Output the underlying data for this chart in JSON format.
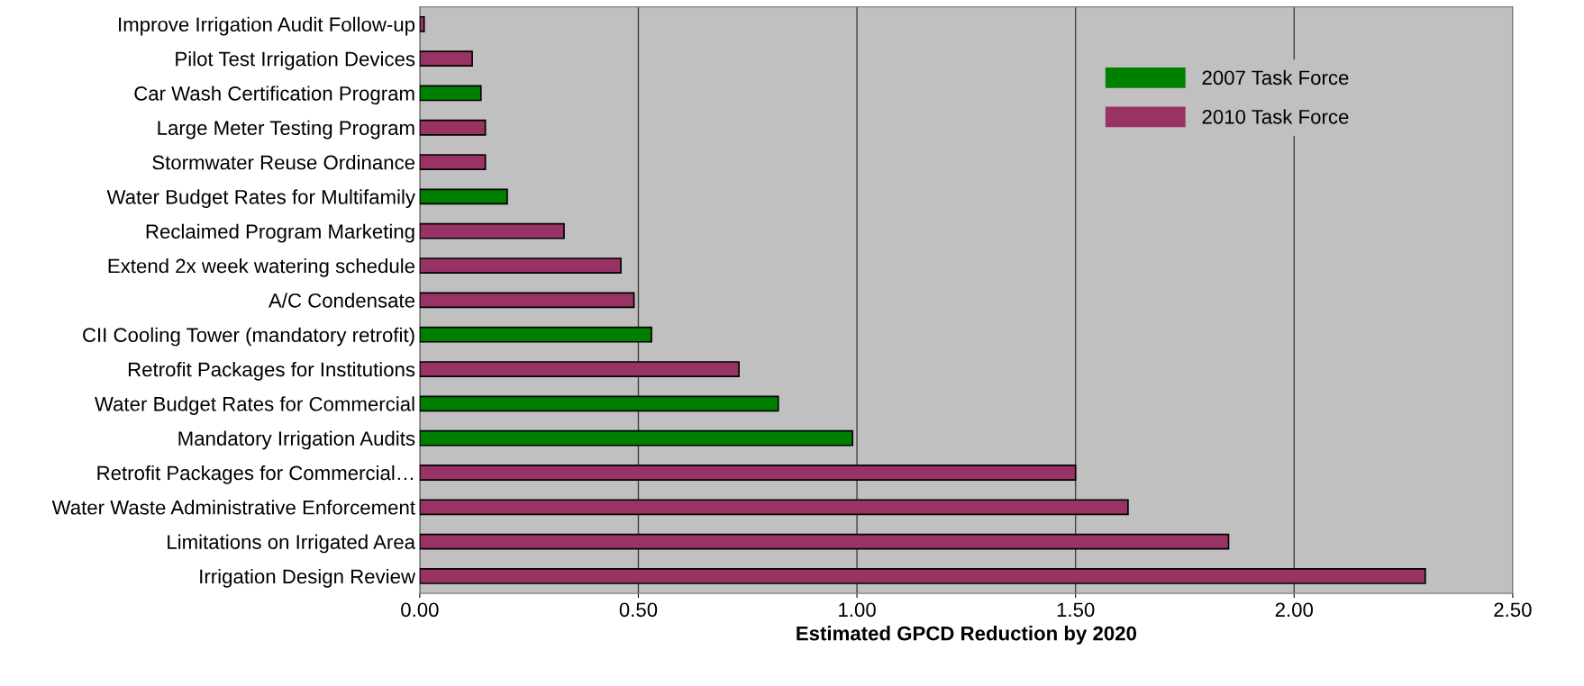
{
  "chart_data": {
    "type": "bar",
    "orientation": "horizontal",
    "xlabel": "Estimated GPCD Reduction by 2020",
    "categories": [
      "Improve Irrigation Audit Follow-up",
      "Pilot Test Irrigation Devices",
      "Car Wash Certification Program",
      "Large Meter Testing Program",
      "Stormwater Reuse Ordinance",
      "Water Budget Rates for Multifamily",
      "Reclaimed Program Marketing",
      "Extend 2x week watering schedule",
      "A/C Condensate",
      "CII Cooling Tower (mandatory retrofit)",
      "Retrofit Packages for Institutions",
      "Water Budget Rates for Commercial",
      "Mandatory Irrigation Audits",
      "Retrofit Packages for Commercial…",
      "Water Waste Administrative Enforcement",
      "Limitations on Irrigated Area",
      "Irrigation Design Review"
    ],
    "series": [
      {
        "name": "2007 Task Force",
        "color": "#008000",
        "values": [
          null,
          null,
          0.14,
          null,
          null,
          0.2,
          null,
          null,
          null,
          0.53,
          null,
          0.82,
          0.99,
          null,
          null,
          null,
          null
        ]
      },
      {
        "name": "2010 Task Force",
        "color": "#993366",
        "values": [
          0.01,
          0.12,
          null,
          0.15,
          0.15,
          null,
          0.33,
          0.46,
          0.49,
          null,
          0.73,
          null,
          null,
          1.5,
          1.62,
          1.85,
          2.3
        ]
      }
    ],
    "xlim": [
      0,
      2.5
    ],
    "xticks": [
      {
        "value": 0,
        "label": "0.00"
      },
      {
        "value": 0.5,
        "label": "0.50"
      },
      {
        "value": 1,
        "label": "1.00"
      },
      {
        "value": 1.5,
        "label": "1.50"
      },
      {
        "value": 2,
        "label": "2.00"
      },
      {
        "value": 2.5,
        "label": "2.50"
      }
    ],
    "grid": "x",
    "legend": "top right"
  }
}
